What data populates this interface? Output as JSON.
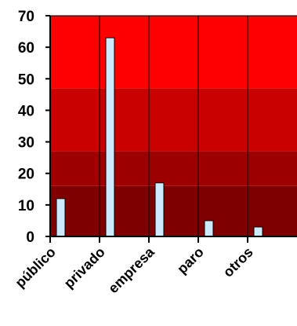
{
  "chart_data": {
    "type": "bar",
    "title": "",
    "xlabel": "",
    "ylabel": "",
    "categories": [
      "público",
      "privado",
      "empresa",
      "paro",
      "otros"
    ],
    "values": [
      12,
      63,
      17,
      5,
      3
    ],
    "ylim": [
      0,
      70
    ],
    "yticks": [
      0,
      10,
      20,
      30,
      40,
      50,
      60,
      70
    ],
    "grid": "vertical category dividers",
    "legend": "none",
    "colors": {
      "bar_fill": "#cdeaff",
      "bar_stroke": "#000000",
      "band_bottom": "#7f0000",
      "band_lower": "#9c0000",
      "band_middle": "#c80000",
      "band_top": "#ff0000",
      "axis": "#000000"
    },
    "background_bands": [
      {
        "from": 0,
        "to": 16,
        "color": "#7f0000"
      },
      {
        "from": 16,
        "to": 27,
        "color": "#9c0000"
      },
      {
        "from": 27,
        "to": 47,
        "color": "#c80000"
      },
      {
        "from": 47,
        "to": 70,
        "color": "#ff0000"
      }
    ]
  }
}
